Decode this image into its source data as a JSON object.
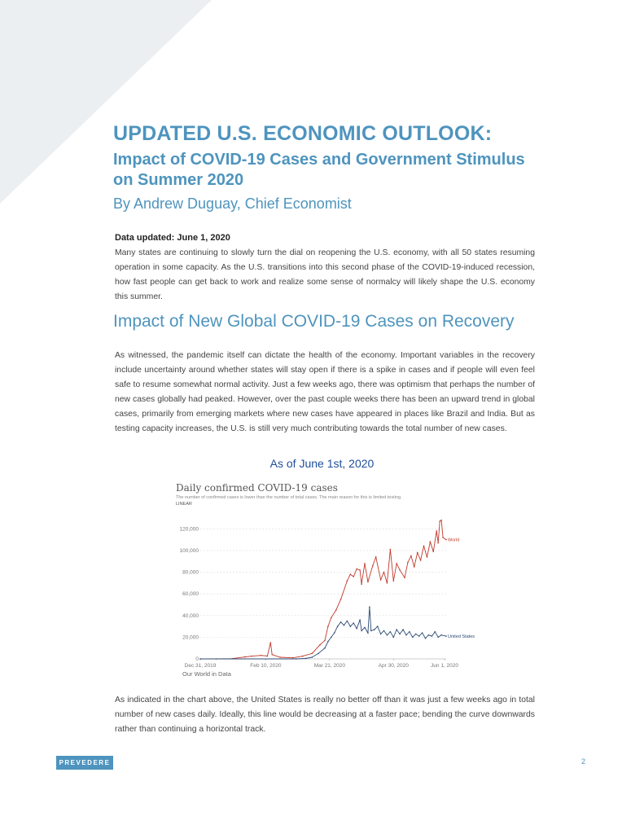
{
  "header": {
    "title": "UPDATED U.S. ECONOMIC OUTLOOK:",
    "subtitle": "Impact of COVID-19 Cases and Government Stimulus on Summer 2020",
    "byline": "By Andrew Duguay, Chief Economist"
  },
  "body": {
    "data_updated": "Data updated: June 1, 2020",
    "paragraph1": "Many states are continuing to slowly turn the dial on reopening the U.S. economy, with all 50 states resuming operation in some capacity. As the U.S. transitions into this second phase of the COVID-19-induced recession, how fast people can get back to work and realize some sense of normalcy will likely shape the U.S. economy this summer.",
    "section_heading": "Impact of New Global COVID-19 Cases on Recovery",
    "paragraph2": "As witnessed, the pandemic itself can dictate the health of the economy. Important variables in the recovery include uncertainty around whether states will stay open if there is a spike in cases and if people will even feel safe to resume somewhat normal activity. Just a few weeks ago, there was optimism that perhaps the number of new cases globally had peaked. However, over the past couple weeks there has been an upward trend in global cases, primarily from emerging markets where new cases have appeared in places like Brazil and India. But as testing capacity increases, the U.S. is still very much contributing towards the total number of new cases.",
    "chart_caption": "As of June 1st, 2020",
    "paragraph3": "As indicated in the chart above, the United States is really no better off than it was just a few weeks ago in total number of new cases daily. Ideally, this line would be decreasing at a faster pace; bending the curve downwards rather than continuing a horizontal track."
  },
  "footer": {
    "logo": "PREVEDERE",
    "page_number": "2"
  },
  "colors": {
    "accent": "#4e94be",
    "world_series": "#c0392b",
    "us_series": "#2c4a73"
  },
  "chart_data": {
    "type": "line",
    "title": "Daily confirmed COVID-19 cases",
    "subtitle": "The number of confirmed cases is lower than the number of total cases. The main reason for this is limited testing.",
    "scale_label": "LINEAR",
    "source": "Our World in Data",
    "ylim": [
      0,
      130000
    ],
    "yticks": [
      0,
      20000,
      40000,
      60000,
      80000,
      100000,
      120000
    ],
    "ytick_labels": [
      "0",
      "20,000",
      "40,000",
      "60,000",
      "80,000",
      "100,000",
      "120,000"
    ],
    "xlim": [
      0,
      154
    ],
    "xticks": [
      0,
      41,
      81,
      121,
      153
    ],
    "xtick_labels": [
      "Dec 31, 2019",
      "Feb 10, 2020",
      "Mar 21, 2020",
      "Apr 30, 2020",
      "Jun 1, 2020"
    ],
    "series": [
      {
        "name": "World",
        "points": [
          [
            0,
            0
          ],
          [
            10,
            0
          ],
          [
            20,
            200
          ],
          [
            28,
            1800
          ],
          [
            32,
            2500
          ],
          [
            38,
            3200
          ],
          [
            42,
            2600
          ],
          [
            44,
            15000
          ],
          [
            45,
            4000
          ],
          [
            50,
            1500
          ],
          [
            58,
            1000
          ],
          [
            64,
            2500
          ],
          [
            70,
            5000
          ],
          [
            75,
            13000
          ],
          [
            78,
            17000
          ],
          [
            80,
            30000
          ],
          [
            82,
            38000
          ],
          [
            85,
            45000
          ],
          [
            88,
            55000
          ],
          [
            92,
            72000
          ],
          [
            94,
            78000
          ],
          [
            96,
            76000
          ],
          [
            98,
            83000
          ],
          [
            100,
            82000
          ],
          [
            101,
            69000
          ],
          [
            103,
            88000
          ],
          [
            105,
            71000
          ],
          [
            108,
            86000
          ],
          [
            110,
            94000
          ],
          [
            113,
            73000
          ],
          [
            115,
            80000
          ],
          [
            117,
            70000
          ],
          [
            119,
            101000
          ],
          [
            121,
            72000
          ],
          [
            123,
            88000
          ],
          [
            125,
            82000
          ],
          [
            128,
            75000
          ],
          [
            130,
            89000
          ],
          [
            132,
            95000
          ],
          [
            134,
            85000
          ],
          [
            136,
            98000
          ],
          [
            138,
            91000
          ],
          [
            140,
            104000
          ],
          [
            142,
            94000
          ],
          [
            144,
            108000
          ],
          [
            146,
            99000
          ],
          [
            148,
            118000
          ],
          [
            149,
            107000
          ],
          [
            150,
            127000
          ],
          [
            151,
            128000
          ],
          [
            152,
            112000
          ],
          [
            154,
            110000
          ]
        ]
      },
      {
        "name": "United States",
        "points": [
          [
            0,
            0
          ],
          [
            60,
            0
          ],
          [
            66,
            400
          ],
          [
            70,
            1500
          ],
          [
            74,
            5000
          ],
          [
            78,
            10000
          ],
          [
            80,
            16000
          ],
          [
            82,
            20000
          ],
          [
            84,
            24000
          ],
          [
            86,
            30000
          ],
          [
            88,
            34000
          ],
          [
            90,
            31000
          ],
          [
            92,
            35000
          ],
          [
            94,
            30000
          ],
          [
            96,
            33000
          ],
          [
            98,
            28000
          ],
          [
            100,
            36000
          ],
          [
            101,
            26000
          ],
          [
            103,
            29000
          ],
          [
            105,
            24000
          ],
          [
            106,
            48000
          ],
          [
            107,
            26000
          ],
          [
            109,
            27000
          ],
          [
            111,
            30000
          ],
          [
            113,
            23000
          ],
          [
            115,
            26000
          ],
          [
            117,
            22000
          ],
          [
            119,
            25000
          ],
          [
            121,
            20000
          ],
          [
            123,
            27000
          ],
          [
            125,
            23000
          ],
          [
            127,
            27000
          ],
          [
            129,
            22000
          ],
          [
            131,
            25000
          ],
          [
            133,
            20000
          ],
          [
            135,
            23000
          ],
          [
            137,
            21000
          ],
          [
            139,
            24000
          ],
          [
            141,
            19000
          ],
          [
            143,
            22000
          ],
          [
            145,
            21000
          ],
          [
            147,
            25000
          ],
          [
            149,
            20000
          ],
          [
            151,
            22000
          ],
          [
            154,
            21000
          ]
        ]
      }
    ]
  }
}
